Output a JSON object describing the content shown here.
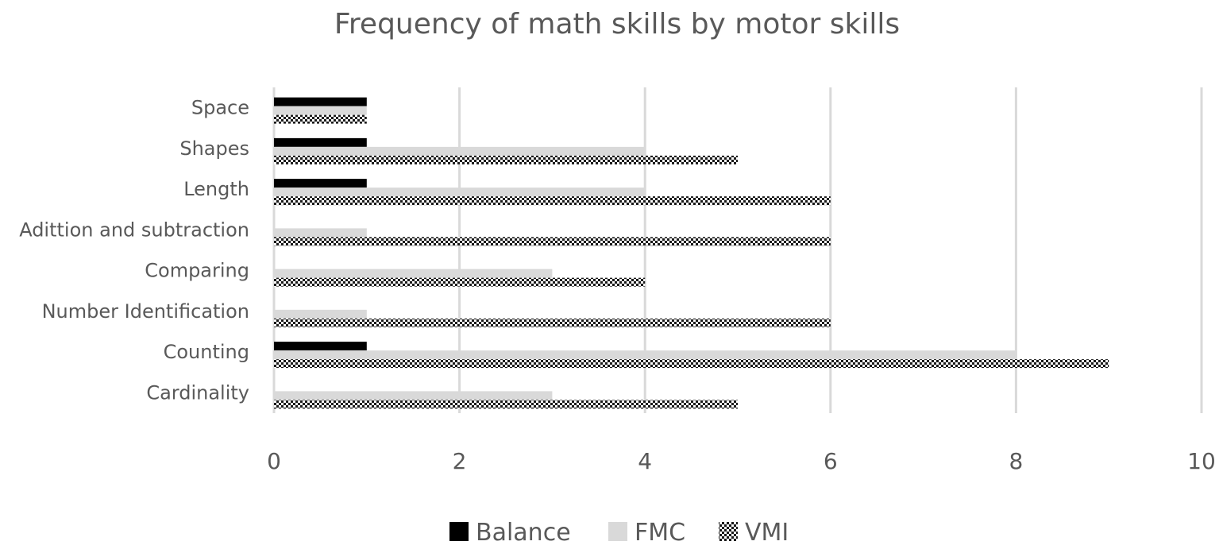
{
  "chart_data": {
    "type": "bar",
    "orientation": "horizontal",
    "title": "Frequency of math skills by motor skills",
    "xlabel": "",
    "ylabel": "",
    "categories": [
      "Cardinality",
      "Counting",
      "Number Identification",
      "Comparing",
      "Adittion and subtraction",
      "Length",
      "Shapes",
      "Space"
    ],
    "series": [
      {
        "name": "Balance",
        "values": [
          0,
          1,
          0,
          0,
          0,
          1,
          1,
          1
        ],
        "color": "#000000",
        "pattern": "solid"
      },
      {
        "name": "FMC",
        "values": [
          3,
          8,
          1,
          3,
          1,
          4,
          4,
          1
        ],
        "color": "#d9d9d9",
        "pattern": "solid"
      },
      {
        "name": "VMI",
        "values": [
          5,
          9,
          6,
          4,
          6,
          6,
          5,
          1
        ],
        "color": "#000000",
        "pattern": "dotted"
      }
    ],
    "xlim": [
      0,
      10
    ],
    "xticks": [
      0,
      2,
      4,
      6,
      8,
      10
    ],
    "grid": true,
    "legend_position": "bottom"
  }
}
